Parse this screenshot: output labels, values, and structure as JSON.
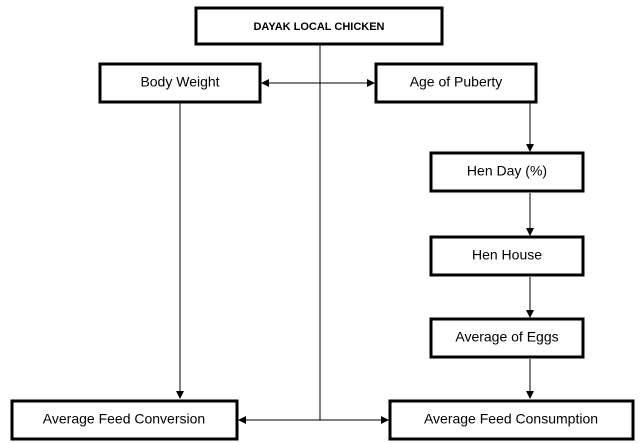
{
  "nodes": [
    {
      "label": "DAYAK LOCAL CHICKEN"
    },
    {
      "label": "Body Weight"
    },
    {
      "label": "Age of Puberty"
    },
    {
      "label": "Hen Day (%)"
    },
    {
      "label": "Hen House"
    },
    {
      "label": "Average of Eggs"
    },
    {
      "label": "Average Feed Conversion"
    },
    {
      "label": "Average Feed Consumption"
    }
  ]
}
